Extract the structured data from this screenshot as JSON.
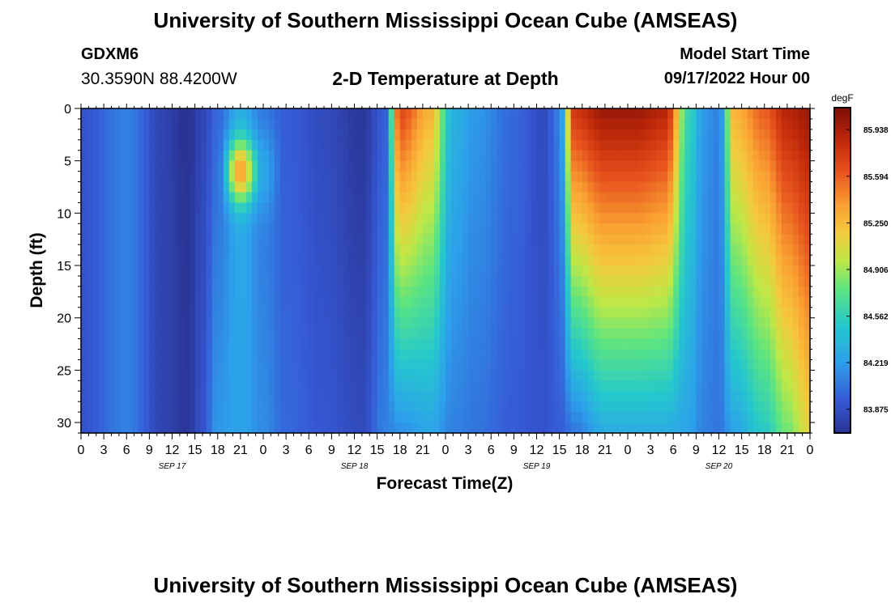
{
  "header": {
    "title": "University of Southern Mississippi Ocean Cube (AMSEAS)",
    "station_id": "GDXM6",
    "station_coords": "30.3590N  88.4200W",
    "subtitle": "2-D Temperature at Depth",
    "model_start_label": "Model Start Time",
    "model_start_value": "09/17/2022 Hour 00"
  },
  "footer": {
    "title": "University of Southern Mississippi Ocean Cube (AMSEAS)"
  },
  "chart_data": {
    "type": "heatmap",
    "title": "2-D Temperature at Depth",
    "xlabel": "Forecast Time(Z)",
    "ylabel": "Depth (ft)",
    "x_tick_labels": [
      "0",
      "3",
      "6",
      "9",
      "12",
      "15",
      "18",
      "21",
      "0",
      "3",
      "6",
      "9",
      "12",
      "15",
      "18",
      "21",
      "0",
      "3",
      "6",
      "9",
      "12",
      "15",
      "18",
      "21",
      "0",
      "3",
      "6",
      "9",
      "12",
      "15",
      "18",
      "21",
      "0"
    ],
    "x_date_labels": [
      {
        "label": "SEP 17",
        "hour": 12
      },
      {
        "label": "SEP 18",
        "hour": 36
      },
      {
        "label": "SEP 19",
        "hour": 60
      },
      {
        "label": "SEP 20",
        "hour": 84
      }
    ],
    "x_range_hours": [
      0,
      96
    ],
    "y_ticks": [
      0,
      5,
      10,
      15,
      20,
      25,
      30
    ],
    "y_range": [
      0,
      31
    ],
    "y_reversed": true,
    "colorbar": {
      "unit": "degF",
      "min": 83.7,
      "max": 86.1,
      "ticks": [
        85.938,
        85.594,
        85.25,
        84.906,
        84.562,
        84.219,
        83.875
      ]
    },
    "grid": false,
    "profiles": [
      {
        "hour": 0,
        "top": 83.9,
        "bottom": 83.9,
        "bump": 0,
        "depth": 0,
        "sigma": 5
      },
      {
        "hour": 6,
        "top": 84.1,
        "bottom": 84.1,
        "bump": 0,
        "depth": 0,
        "sigma": 5
      },
      {
        "hour": 11,
        "top": 83.8,
        "bottom": 83.8,
        "bump": 0,
        "depth": 0,
        "sigma": 5
      },
      {
        "hour": 14,
        "top": 83.7,
        "bottom": 83.72,
        "bump": -0.03,
        "depth": 3,
        "sigma": 3
      },
      {
        "hour": 16,
        "top": 83.82,
        "bottom": 83.9,
        "bump": 0,
        "depth": 0,
        "sigma": 5
      },
      {
        "hour": 18,
        "top": 84.0,
        "bottom": 84.2,
        "bump": 0,
        "depth": 0,
        "sigma": 5
      },
      {
        "hour": 21,
        "top": 84.3,
        "bottom": 84.25,
        "bump": 1.1,
        "depth": 6,
        "sigma": 3
      },
      {
        "hour": 24,
        "top": 84.05,
        "bottom": 84.15,
        "bump": 0.2,
        "depth": 6,
        "sigma": 4
      },
      {
        "hour": 27,
        "top": 83.95,
        "bottom": 84.0,
        "bump": 0,
        "depth": 0,
        "sigma": 5
      },
      {
        "hour": 32,
        "top": 83.85,
        "bottom": 83.92,
        "bump": 0,
        "depth": 0,
        "sigma": 5
      },
      {
        "hour": 37,
        "top": 83.72,
        "bottom": 83.85,
        "bump": 0,
        "depth": 0,
        "sigma": 5
      },
      {
        "hour": 40,
        "top": 83.95,
        "bottom": 84.1,
        "bump": 0,
        "depth": 0,
        "sigma": 5
      },
      {
        "hour": 42,
        "top": 85.7,
        "bottom": 84.15,
        "bump": 0,
        "depth": 0,
        "sigma": 5
      },
      {
        "hour": 46,
        "top": 85.3,
        "bottom": 84.25,
        "bump": 0,
        "depth": 0,
        "sigma": 5
      },
      {
        "hour": 49,
        "top": 84.35,
        "bottom": 84.1,
        "bump": 0,
        "depth": 0,
        "sigma": 5
      },
      {
        "hour": 52,
        "top": 84.2,
        "bottom": 84.05,
        "bump": 0,
        "depth": 0,
        "sigma": 5
      },
      {
        "hour": 57,
        "top": 84.0,
        "bottom": 83.95,
        "bump": 0,
        "depth": 0,
        "sigma": 5
      },
      {
        "hour": 61,
        "top": 83.85,
        "bottom": 83.9,
        "bump": 0,
        "depth": 0,
        "sigma": 5
      },
      {
        "hour": 63,
        "top": 84.1,
        "bottom": 83.95,
        "bump": 0,
        "depth": 0,
        "sigma": 5
      },
      {
        "hour": 65,
        "top": 85.8,
        "bottom": 84.05,
        "bump": 0,
        "depth": 0,
        "sigma": 5
      },
      {
        "hour": 69,
        "top": 86.0,
        "bottom": 84.3,
        "bump": 0,
        "depth": 0,
        "sigma": 5
      },
      {
        "hour": 73,
        "top": 86.0,
        "bottom": 84.3,
        "bump": 0,
        "depth": 0,
        "sigma": 5
      },
      {
        "hour": 77,
        "top": 85.9,
        "bottom": 84.3,
        "bump": 0,
        "depth": 0,
        "sigma": 5
      },
      {
        "hour": 80,
        "top": 84.6,
        "bottom": 84.25,
        "bump": 0,
        "depth": 0,
        "sigma": 5
      },
      {
        "hour": 82,
        "top": 84.2,
        "bottom": 84.1,
        "bump": 0,
        "depth": 0,
        "sigma": 5
      },
      {
        "hour": 84,
        "top": 84.1,
        "bottom": 84.05,
        "bump": 0,
        "depth": 0,
        "sigma": 5
      },
      {
        "hour": 86,
        "top": 85.3,
        "bottom": 84.25,
        "bump": 0,
        "depth": 0,
        "sigma": 5
      },
      {
        "hour": 90,
        "top": 85.6,
        "bottom": 84.5,
        "bump": 0,
        "depth": 0,
        "sigma": 5
      },
      {
        "hour": 93,
        "top": 85.9,
        "bottom": 84.8,
        "bump": 0,
        "depth": 0,
        "sigma": 5
      },
      {
        "hour": 96,
        "top": 86.0,
        "bottom": 85.1,
        "bump": 0,
        "depth": 0,
        "sigma": 5
      }
    ]
  }
}
